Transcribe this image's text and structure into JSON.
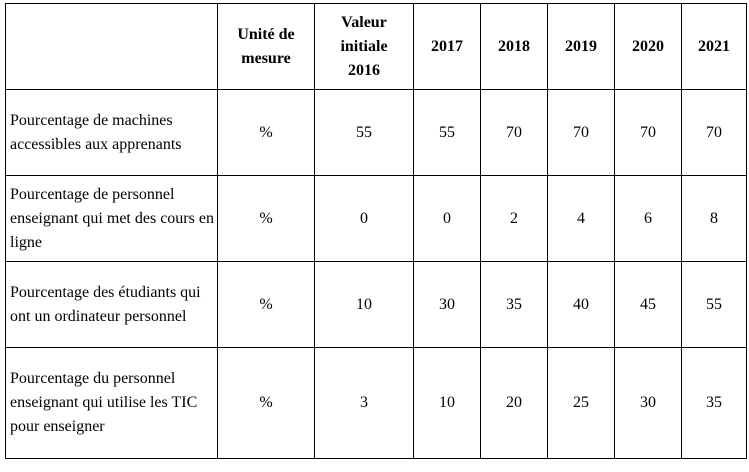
{
  "table": {
    "headers": [
      "",
      "Unité de mesure",
      "Valeur initiale 2016",
      "2017",
      "2018",
      "2019",
      "2020",
      "2021"
    ],
    "rows": [
      {
        "indicator": "Pourcentage de machines accessibles aux apprenants",
        "unit": "%",
        "values": [
          "55",
          "55",
          "70",
          "70",
          "70",
          "70"
        ]
      },
      {
        "indicator": "Pourcentage de personnel enseignant qui met des cours en ligne",
        "unit": "%",
        "values": [
          "0",
          "0",
          "2",
          "4",
          "6",
          "8"
        ]
      },
      {
        "indicator": "Pourcentage des étudiants qui ont un ordinateur personnel",
        "unit": "%",
        "values": [
          "10",
          "30",
          "35",
          "40",
          "45",
          "55"
        ]
      },
      {
        "indicator": "Pourcentage du personnel enseignant qui utilise les TIC pour enseigner",
        "unit": "%",
        "values": [
          "3",
          "10",
          "20",
          "25",
          "30",
          "35"
        ]
      }
    ]
  }
}
